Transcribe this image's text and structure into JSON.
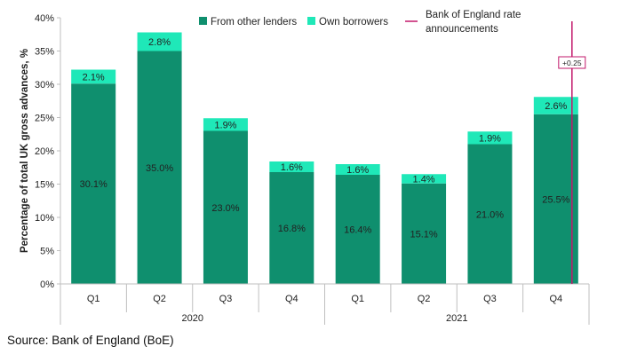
{
  "source": "Source: Bank of England (BoE)",
  "chart_data": {
    "type": "bar",
    "stacked": true,
    "title": "",
    "ylabel": "Percentage of total UK  gross advances, %",
    "xlabel": "",
    "ylim": [
      0,
      40
    ],
    "y_ticks": [
      0,
      5,
      10,
      15,
      20,
      25,
      30,
      35,
      40
    ],
    "y_tick_labels": [
      "0%",
      "5%",
      "10%",
      "15%",
      "20%",
      "25%",
      "30%",
      "35%",
      "40%"
    ],
    "categories": [
      "Q1",
      "Q2",
      "Q3",
      "Q4",
      "Q1",
      "Q2",
      "Q3",
      "Q4"
    ],
    "groups": [
      {
        "label": "2020",
        "start": 0,
        "end": 3
      },
      {
        "label": "2021",
        "start": 4,
        "end": 7
      }
    ],
    "series": [
      {
        "name": "From other lenders",
        "color": "#0f8f6e",
        "values": [
          30.1,
          35.0,
          23.0,
          16.8,
          16.4,
          15.1,
          21.0,
          25.5
        ],
        "labels": [
          "30.1%",
          "35.0%",
          "23.0%",
          "16.8%",
          "16.4%",
          "15.1%",
          "21.0%",
          "25.5%"
        ]
      },
      {
        "name": "Own borrowers",
        "color": "#1fe8b8",
        "values": [
          2.1,
          2.8,
          1.9,
          1.6,
          1.6,
          1.4,
          1.9,
          2.6
        ],
        "labels": [
          "2.1%",
          "2.8%",
          "1.9%",
          "1.6%",
          "1.6%",
          "1.4%",
          "1.9%",
          "2.6%"
        ]
      }
    ],
    "marker": {
      "name": "Bank of England rate announcements",
      "legend_line1": "Bank of England rate",
      "legend_line2": "announcements",
      "color": "#c2186b",
      "category_index": 7,
      "annotation": "+0.25"
    },
    "legend_position": "top"
  }
}
